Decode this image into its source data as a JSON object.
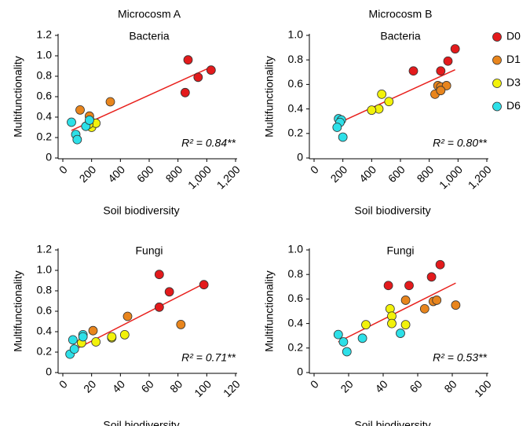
{
  "chart_data": [
    {
      "type": "scatter",
      "title": "Microcosm A",
      "subtitle": "Bacteria",
      "x_label": "Soil biodiversity",
      "y_label": "Multifunctionality",
      "xlim": [
        0,
        1200
      ],
      "xticks": [
        0,
        200,
        400,
        600,
        800,
        {
          "value": 1000,
          "label": "1,000"
        },
        {
          "value": 1200,
          "label": "1,200"
        }
      ],
      "ylim": [
        0,
        1.2
      ],
      "yticks": [
        0,
        0.2,
        0.4,
        0.6,
        0.8,
        {
          "value": 1.0,
          "label": "1.0"
        },
        1.2
      ],
      "series": [
        {
          "color": "#e31a1c",
          "x": [
            870,
            940,
            1030,
            850
          ],
          "values": [
            0.96,
            0.79,
            0.86,
            0.64
          ]
        },
        {
          "color": "#e8851d",
          "x": [
            120,
            330,
            185,
            200
          ],
          "values": [
            0.47,
            0.55,
            0.41,
            0.35
          ]
        },
        {
          "color": "#f2f20a",
          "x": [
            200,
            230,
            180
          ],
          "values": [
            0.3,
            0.34,
            0.33
          ]
        },
        {
          "color": "#2de0e8",
          "x": [
            60,
            90,
            100,
            160,
            185
          ],
          "values": [
            0.35,
            0.23,
            0.18,
            0.31,
            0.37
          ]
        }
      ],
      "trendline": {
        "color": "#e8201c",
        "x": [
          60,
          1030
        ],
        "y": [
          0.27,
          0.89
        ]
      },
      "annotation": "R² = 0.84**"
    },
    {
      "type": "scatter",
      "title": "Microcosm B",
      "subtitle": "Bacteria",
      "x_label": "Soil biodiversity",
      "y_label": "Multifunctionality",
      "xlim": [
        0,
        1200
      ],
      "xticks": [
        0,
        200,
        400,
        600,
        800,
        {
          "value": 1000,
          "label": "1,000"
        },
        {
          "value": 1200,
          "label": "1,200"
        }
      ],
      "ylim": [
        0,
        1.0
      ],
      "yticks": [
        0,
        0.2,
        0.4,
        0.6,
        0.8,
        {
          "value": 1.0,
          "label": "1.0"
        }
      ],
      "legend": "right",
      "series": [
        {
          "name": "D0",
          "color": "#e31a1c",
          "x": [
            980,
            930,
            880,
            690
          ],
          "values": [
            0.89,
            0.79,
            0.71,
            0.71
          ]
        },
        {
          "name": "D1",
          "color": "#e8851d",
          "x": [
            860,
            880,
            920,
            840,
            880
          ],
          "values": [
            0.59,
            0.58,
            0.59,
            0.52,
            0.55
          ]
        },
        {
          "name": "D3",
          "color": "#f2f20a",
          "x": [
            470,
            520,
            450,
            400
          ],
          "values": [
            0.52,
            0.46,
            0.4,
            0.39
          ]
        },
        {
          "name": "D6",
          "color": "#2de0e8",
          "x": [
            170,
            190,
            180,
            160,
            200
          ],
          "values": [
            0.32,
            0.31,
            0.29,
            0.25,
            0.17
          ]
        }
      ],
      "trendline": {
        "color": "#e8201c",
        "x": [
          160,
          980
        ],
        "y": [
          0.28,
          0.72
        ]
      },
      "annotation": "R² = 0.80**"
    },
    {
      "type": "scatter",
      "subtitle": "Fungi",
      "x_label": "Soil biodiversity",
      "y_label": "Multifunctionality",
      "xlim": [
        0,
        120
      ],
      "xticks": [
        0,
        20,
        40,
        60,
        80,
        100,
        120
      ],
      "ylim": [
        0,
        1.2
      ],
      "yticks": [
        0,
        0.2,
        0.4,
        0.6,
        0.8,
        {
          "value": 1.0,
          "label": "1.0"
        },
        1.2
      ],
      "series": [
        {
          "color": "#e31a1c",
          "x": [
            67,
            74,
            98,
            67
          ],
          "values": [
            0.96,
            0.79,
            0.86,
            0.64
          ]
        },
        {
          "color": "#e8851d",
          "x": [
            21,
            45,
            82
          ],
          "values": [
            0.41,
            0.55,
            0.47
          ]
        },
        {
          "color": "#f2f20a",
          "x": [
            13,
            23,
            34,
            34,
            43
          ],
          "values": [
            0.29,
            0.3,
            0.34,
            0.35,
            0.37
          ]
        },
        {
          "color": "#2de0e8",
          "x": [
            5,
            7,
            8,
            14,
            14
          ],
          "values": [
            0.18,
            0.32,
            0.23,
            0.37,
            0.35
          ]
        }
      ],
      "trendline": {
        "color": "#e8201c",
        "x": [
          5,
          98
        ],
        "y": [
          0.2,
          0.87
        ]
      },
      "annotation": "R² = 0.71**"
    },
    {
      "type": "scatter",
      "subtitle": "Fungi",
      "x_label": "Soil biodiversity",
      "y_label": "Multifunctionality",
      "xlim": [
        0,
        100
      ],
      "xticks": [
        0,
        20,
        40,
        60,
        80,
        100
      ],
      "ylim": [
        0,
        1.0
      ],
      "yticks": [
        0,
        0.2,
        0.4,
        0.6,
        0.8,
        {
          "value": 1.0,
          "label": "1.0"
        }
      ],
      "series": [
        {
          "color": "#e31a1c",
          "x": [
            43,
            55,
            68,
            73
          ],
          "values": [
            0.71,
            0.71,
            0.78,
            0.88
          ]
        },
        {
          "color": "#e8851d",
          "x": [
            53,
            64,
            69,
            71,
            82
          ],
          "values": [
            0.59,
            0.52,
            0.58,
            0.59,
            0.55
          ]
        },
        {
          "color": "#f2f20a",
          "x": [
            30,
            44,
            45,
            45,
            53
          ],
          "values": [
            0.39,
            0.52,
            0.46,
            0.4,
            0.39
          ]
        },
        {
          "color": "#2de0e8",
          "x": [
            14,
            17,
            19,
            28,
            50
          ],
          "values": [
            0.31,
            0.25,
            0.17,
            0.28,
            0.32
          ]
        }
      ],
      "trendline": {
        "color": "#e8201c",
        "x": [
          14,
          82
        ],
        "y": [
          0.25,
          0.73
        ]
      },
      "annotation": "R² = 0.53**"
    }
  ]
}
